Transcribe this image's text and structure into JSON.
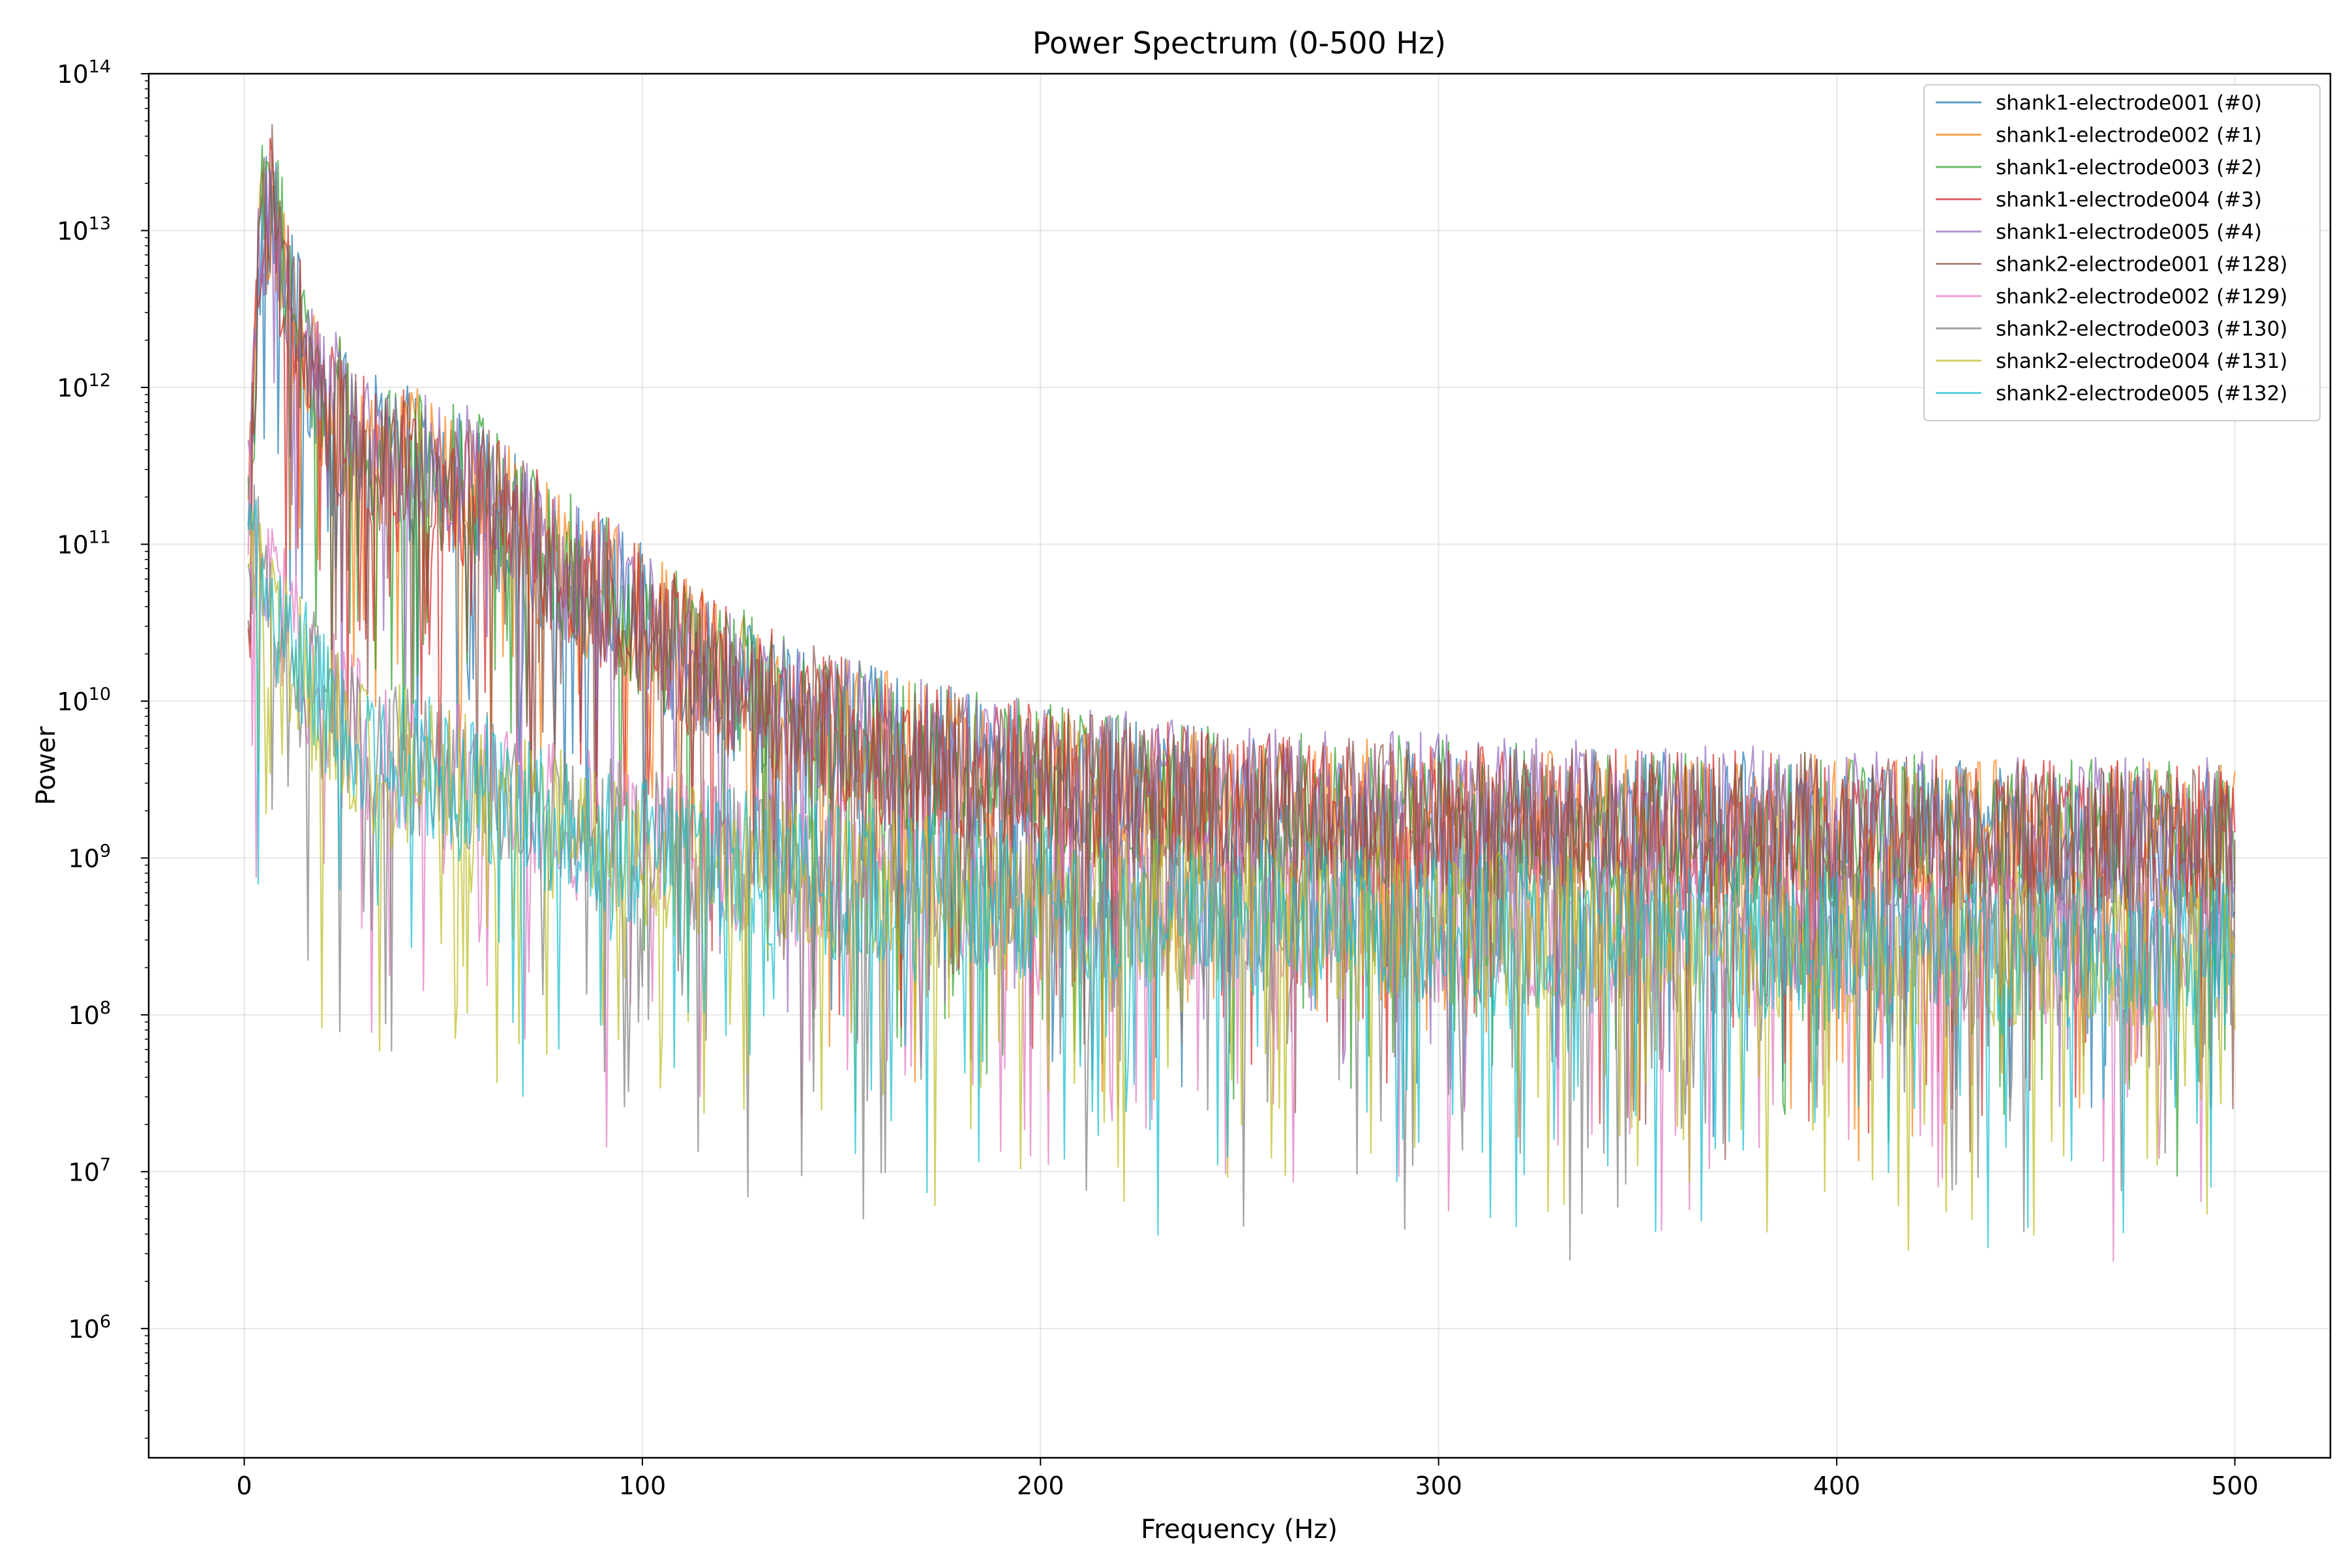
{
  "chart_data": {
    "type": "line",
    "title": "Power Spectrum (0-500 Hz)",
    "xlabel": "Frequency (Hz)",
    "ylabel": "Power",
    "xlim": [
      -24,
      524
    ],
    "ylim": [
      150000,
      100000000000000
    ],
    "y_scale": "log",
    "x_ticks": [
      0,
      100,
      200,
      300,
      400,
      500
    ],
    "y_ticks": [
      {
        "value": 1000000,
        "base": "10",
        "exp": "6"
      },
      {
        "value": 10000000,
        "base": "10",
        "exp": "7"
      },
      {
        "value": 100000000,
        "base": "10",
        "exp": "8"
      },
      {
        "value": 1000000000,
        "base": "10",
        "exp": "9"
      },
      {
        "value": 10000000000,
        "base": "10",
        "exp": "10"
      },
      {
        "value": 100000000000,
        "base": "10",
        "exp": "11"
      },
      {
        "value": 1000000000000,
        "base": "10",
        "exp": "12"
      },
      {
        "value": 10000000000000,
        "base": "10",
        "exp": "13"
      },
      {
        "value": 100000000000000,
        "base": "10",
        "exp": "14"
      }
    ],
    "grid": true,
    "legend_position": "top-right",
    "series": [
      {
        "name": "shank1-electrode001 (#0)",
        "color": "#1f77b4",
        "x": [
          1,
          4,
          7,
          12,
          20,
          30,
          45,
          60,
          75,
          90,
          110,
          130,
          150,
          175,
          200,
          250,
          300,
          350,
          400,
          450,
          500
        ],
        "y": [
          80000000000,
          8000000000000,
          15000000000000,
          3000000000000,
          800000000000,
          400000000000,
          300000000000,
          200000000000,
          80000000000,
          50000000000,
          20000000000,
          10000000000,
          6000000000,
          4000000000,
          3000000000,
          2000000000,
          1800000000,
          1500000000,
          1500000000,
          1300000000,
          1300000000
        ]
      },
      {
        "name": "shank1-electrode002 (#1)",
        "color": "#ff7f0e",
        "x": [
          1,
          4,
          7,
          12,
          20,
          30,
          45,
          60,
          75,
          90,
          110,
          130,
          150,
          175,
          200,
          250,
          300,
          350,
          400,
          450,
          500
        ],
        "y": [
          100000000000,
          9000000000000,
          17000000000000,
          3000000000000,
          850000000000,
          420000000000,
          300000000000,
          200000000000,
          85000000000,
          50000000000,
          20000000000,
          10000000000,
          6000000000,
          4000000000,
          3000000000,
          2000000000,
          1800000000,
          1500000000,
          1500000000,
          1300000000,
          1300000000
        ]
      },
      {
        "name": "shank1-electrode003 (#2)",
        "color": "#2ca02c",
        "x": [
          1,
          4,
          7,
          12,
          20,
          30,
          45,
          60,
          75,
          90,
          110,
          130,
          150,
          175,
          200,
          250,
          300,
          350,
          400,
          450,
          500
        ],
        "y": [
          120000000000,
          10000000000000,
          18000000000000,
          3200000000000,
          900000000000,
          430000000000,
          310000000000,
          210000000000,
          90000000000,
          52000000000,
          21000000000,
          10500000000,
          6200000000,
          4100000000,
          3100000000,
          2100000000,
          1900000000,
          1600000000,
          1500000000,
          1400000000,
          1300000000
        ]
      },
      {
        "name": "shank1-electrode004 (#3)",
        "color": "#d62728",
        "x": [
          1,
          4,
          7,
          12,
          20,
          30,
          45,
          60,
          75,
          90,
          110,
          130,
          150,
          175,
          200,
          250,
          300,
          350,
          400,
          450,
          500
        ],
        "y": [
          110000000000,
          9500000000000,
          17000000000000,
          3100000000000,
          880000000000,
          420000000000,
          300000000000,
          200000000000,
          88000000000,
          51000000000,
          20500000000,
          10200000000,
          6100000000,
          4050000000,
          3050000000,
          2050000000,
          1850000000,
          1550000000,
          1500000000,
          1350000000,
          1300000000
        ]
      },
      {
        "name": "shank1-electrode005 (#4)",
        "color": "#9467bd",
        "x": [
          1,
          4,
          7,
          12,
          20,
          30,
          45,
          60,
          75,
          90,
          110,
          130,
          150,
          175,
          200,
          250,
          300,
          350,
          400,
          450,
          500
        ],
        "y": [
          150000000000,
          11000000000000,
          14000000000000,
          3300000000000,
          950000000000,
          450000000000,
          320000000000,
          220000000000,
          92000000000,
          55000000000,
          22000000000,
          11000000000,
          6500000000,
          4200000000,
          3200000000,
          2200000000,
          2000000000,
          1700000000,
          1600000000,
          1400000000,
          1400000000
        ]
      },
      {
        "name": "shank2-electrode001 (#128)",
        "color": "#8c564b",
        "x": [
          1,
          4,
          7,
          12,
          20,
          30,
          45,
          60,
          75,
          90,
          110,
          130,
          150,
          175,
          200,
          250,
          300,
          350,
          400,
          450,
          500
        ],
        "y": [
          90000000000,
          9000000000000,
          16000000000000,
          3000000000000,
          850000000000,
          410000000000,
          300000000000,
          200000000000,
          86000000000,
          50000000000,
          20000000000,
          10000000000,
          6000000000,
          4000000000,
          3000000000,
          2000000000,
          1800000000,
          1500000000,
          1500000000,
          1300000000,
          1300000000
        ]
      },
      {
        "name": "shank2-electrode002 (#129)",
        "color": "#e377c2",
        "x": [
          1,
          4,
          7,
          12,
          20,
          30,
          45,
          60,
          75,
          90,
          110,
          130,
          150,
          175,
          200,
          250,
          300,
          350,
          400,
          450,
          500
        ],
        "y": [
          200000000000,
          60000000000,
          40000000000,
          25000000000,
          10000000000,
          6000000000,
          4000000000,
          3000000000,
          2000000000,
          1500000000,
          1100000000,
          900000000,
          750000000,
          650000000,
          550000000,
          450000000,
          380000000,
          330000000,
          300000000,
          280000000,
          260000000
        ]
      },
      {
        "name": "shank2-electrode003 (#130)",
        "color": "#7f7f7f",
        "x": [
          1,
          4,
          7,
          12,
          20,
          30,
          45,
          60,
          75,
          90,
          110,
          130,
          150,
          175,
          200,
          250,
          300,
          350,
          400,
          450,
          500
        ],
        "y": [
          150000000000,
          55000000000,
          35000000000,
          22000000000,
          9000000000,
          5500000000,
          3800000000,
          2800000000,
          1900000000,
          1400000000,
          1000000000,
          850000000,
          700000000,
          620000000,
          520000000,
          430000000,
          370000000,
          320000000,
          290000000,
          270000000,
          250000000
        ]
      },
      {
        "name": "shank2-electrode004 (#131)",
        "color": "#bcbd22",
        "x": [
          1,
          4,
          7,
          12,
          20,
          30,
          45,
          60,
          75,
          90,
          110,
          130,
          150,
          175,
          200,
          250,
          300,
          350,
          400,
          450,
          500
        ],
        "y": [
          120000000000,
          45000000000,
          30000000000,
          20000000000,
          8000000000,
          5000000000,
          3500000000,
          2600000000,
          1800000000,
          1300000000,
          950000000,
          800000000,
          680000000,
          600000000,
          500000000,
          420000000,
          360000000,
          310000000,
          280000000,
          260000000,
          240000000
        ]
      },
      {
        "name": "shank2-electrode005 (#132)",
        "color": "#17becf",
        "x": [
          1,
          4,
          7,
          12,
          20,
          30,
          45,
          60,
          75,
          90,
          110,
          130,
          150,
          175,
          200,
          250,
          300,
          350,
          400,
          450,
          500
        ],
        "y": [
          180000000000,
          50000000000,
          32000000000,
          21000000000,
          8500000000,
          5200000000,
          3600000000,
          2700000000,
          1850000000,
          1350000000,
          980000000,
          820000000,
          690000000,
          610000000,
          510000000,
          425000000,
          365000000,
          315000000,
          285000000,
          265000000,
          245000000
        ]
      }
    ]
  }
}
